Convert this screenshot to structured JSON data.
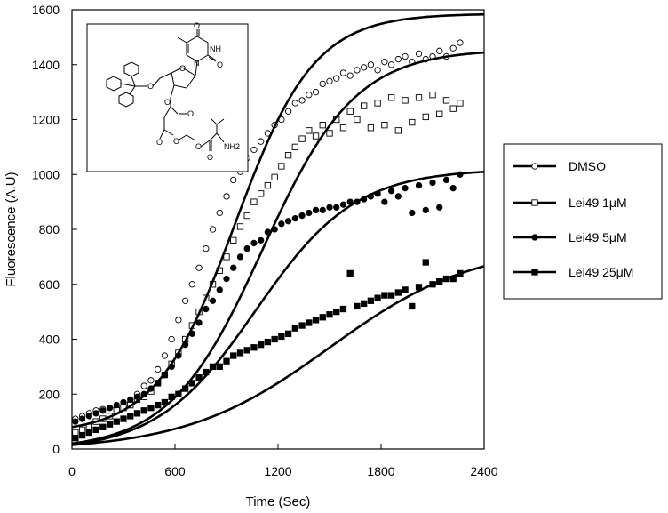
{
  "chart_data": {
    "type": "scatter",
    "xlabel": "Time (Sec)",
    "ylabel": "Fluorescence (A.U)",
    "xlim": [
      0,
      2400
    ],
    "ylim": [
      0,
      1600
    ],
    "xticks": [
      "0",
      "600",
      "1200",
      "1800",
      "2400"
    ],
    "yticks": [
      "0",
      "200",
      "400",
      "600",
      "800",
      "1000",
      "1200",
      "1400",
      "1600"
    ],
    "legend_position": "right",
    "inset": "chemical structure of Lei49 (trityl-protected thymidine nucleoside conjugated to a valine ester)",
    "inset_labels": [
      "O",
      "NH",
      "N",
      "NH2"
    ],
    "series": [
      {
        "name": "DMSO",
        "marker": "open-circle",
        "color": "#000000",
        "fit": {
          "A": 1530,
          "t50": 950,
          "s": 230,
          "y0": 80
        }
      },
      {
        "name": "Lei49 1μM",
        "marker": "open-square",
        "color": "#000000",
        "fit": {
          "A": 1460,
          "t50": 1110,
          "s": 270,
          "y0": 20
        }
      },
      {
        "name": "Lei49 5μM",
        "marker": "filled-circle",
        "color": "#000000",
        "fit": {
          "A": 1030,
          "t50": 1070,
          "s": 290,
          "y0": 15
        }
      },
      {
        "name": "Lei49 25μM",
        "marker": "filled-square",
        "color": "#000000",
        "fit": {
          "A": 750,
          "t50": 1500,
          "s": 420,
          "y0": 15
        }
      }
    ],
    "points": {
      "DMSO": [
        [
          20,
          110
        ],
        [
          60,
          120
        ],
        [
          100,
          130
        ],
        [
          140,
          140
        ],
        [
          180,
          145
        ],
        [
          220,
          150
        ],
        [
          260,
          150
        ],
        [
          300,
          160
        ],
        [
          340,
          170
        ],
        [
          380,
          200
        ],
        [
          420,
          230
        ],
        [
          460,
          250
        ],
        [
          500,
          290
        ],
        [
          540,
          340
        ],
        [
          580,
          400
        ],
        [
          620,
          470
        ],
        [
          660,
          540
        ],
        [
          700,
          600
        ],
        [
          740,
          660
        ],
        [
          780,
          730
        ],
        [
          820,
          800
        ],
        [
          860,
          860
        ],
        [
          900,
          920
        ],
        [
          940,
          980
        ],
        [
          980,
          1010
        ],
        [
          1020,
          1060
        ],
        [
          1060,
          1090
        ],
        [
          1100,
          1120
        ],
        [
          1140,
          1150
        ],
        [
          1180,
          1180
        ],
        [
          1220,
          1200
        ],
        [
          1260,
          1230
        ],
        [
          1300,
          1260
        ],
        [
          1340,
          1270
        ],
        [
          1380,
          1290
        ],
        [
          1420,
          1300
        ],
        [
          1460,
          1330
        ],
        [
          1500,
          1340
        ],
        [
          1540,
          1350
        ],
        [
          1580,
          1370
        ],
        [
          1620,
          1360
        ],
        [
          1660,
          1380
        ],
        [
          1700,
          1390
        ],
        [
          1740,
          1400
        ],
        [
          1780,
          1380
        ],
        [
          1820,
          1410
        ],
        [
          1860,
          1400
        ],
        [
          1900,
          1420
        ],
        [
          1940,
          1430
        ],
        [
          1980,
          1410
        ],
        [
          2020,
          1440
        ],
        [
          2060,
          1420
        ],
        [
          2100,
          1430
        ],
        [
          2140,
          1450
        ],
        [
          2180,
          1430
        ],
        [
          2220,
          1460
        ],
        [
          2260,
          1480
        ]
      ],
      "Lei49 1μM": [
        [
          20,
          60
        ],
        [
          60,
          70
        ],
        [
          100,
          80
        ],
        [
          140,
          100
        ],
        [
          180,
          110
        ],
        [
          220,
          120
        ],
        [
          260,
          140
        ],
        [
          300,
          150
        ],
        [
          340,
          160
        ],
        [
          380,
          180
        ],
        [
          420,
          190
        ],
        [
          460,
          210
        ],
        [
          500,
          240
        ],
        [
          540,
          270
        ],
        [
          580,
          310
        ],
        [
          620,
          350
        ],
        [
          660,
          400
        ],
        [
          700,
          450
        ],
        [
          740,
          500
        ],
        [
          780,
          550
        ],
        [
          820,
          600
        ],
        [
          860,
          650
        ],
        [
          900,
          700
        ],
        [
          940,
          760
        ],
        [
          980,
          810
        ],
        [
          1020,
          850
        ],
        [
          1060,
          900
        ],
        [
          1100,
          930
        ],
        [
          1140,
          960
        ],
        [
          1180,
          990
        ],
        [
          1220,
          1030
        ],
        [
          1260,
          1070
        ],
        [
          1300,
          1100
        ],
        [
          1340,
          1130
        ],
        [
          1380,
          1160
        ],
        [
          1420,
          1140
        ],
        [
          1460,
          1180
        ],
        [
          1500,
          1150
        ],
        [
          1540,
          1200
        ],
        [
          1580,
          1170
        ],
        [
          1620,
          1230
        ],
        [
          1660,
          1200
        ],
        [
          1700,
          1250
        ],
        [
          1740,
          1170
        ],
        [
          1780,
          1260
        ],
        [
          1820,
          1180
        ],
        [
          1860,
          1280
        ],
        [
          1900,
          1160
        ],
        [
          1940,
          1270
        ],
        [
          1980,
          1190
        ],
        [
          2020,
          1280
        ],
        [
          2060,
          1210
        ],
        [
          2100,
          1290
        ],
        [
          2140,
          1220
        ],
        [
          2180,
          1270
        ],
        [
          2220,
          1240
        ],
        [
          2260,
          1260
        ]
      ],
      "Lei49 5μM": [
        [
          20,
          100
        ],
        [
          60,
          110
        ],
        [
          100,
          120
        ],
        [
          140,
          130
        ],
        [
          180,
          140
        ],
        [
          220,
          150
        ],
        [
          260,
          160
        ],
        [
          300,
          170
        ],
        [
          340,
          180
        ],
        [
          380,
          190
        ],
        [
          420,
          200
        ],
        [
          460,
          220
        ],
        [
          500,
          240
        ],
        [
          540,
          270
        ],
        [
          580,
          300
        ],
        [
          620,
          340
        ],
        [
          660,
          380
        ],
        [
          700,
          420
        ],
        [
          740,
          460
        ],
        [
          780,
          510
        ],
        [
          820,
          540
        ],
        [
          860,
          580
        ],
        [
          900,
          620
        ],
        [
          940,
          660
        ],
        [
          980,
          700
        ],
        [
          1020,
          730
        ],
        [
          1060,
          750
        ],
        [
          1100,
          760
        ],
        [
          1140,
          790
        ],
        [
          1180,
          800
        ],
        [
          1220,
          820
        ],
        [
          1260,
          830
        ],
        [
          1300,
          840
        ],
        [
          1340,
          850
        ],
        [
          1380,
          860
        ],
        [
          1420,
          870
        ],
        [
          1460,
          870
        ],
        [
          1500,
          880
        ],
        [
          1540,
          880
        ],
        [
          1580,
          890
        ],
        [
          1620,
          900
        ],
        [
          1660,
          900
        ],
        [
          1700,
          910
        ],
        [
          1740,
          920
        ],
        [
          1780,
          930
        ],
        [
          1820,
          900
        ],
        [
          1860,
          940
        ],
        [
          1900,
          920
        ],
        [
          1940,
          950
        ],
        [
          1980,
          860
        ],
        [
          2020,
          960
        ],
        [
          2060,
          870
        ],
        [
          2100,
          970
        ],
        [
          2140,
          880
        ],
        [
          2180,
          980
        ],
        [
          2220,
          950
        ],
        [
          2260,
          1000
        ]
      ],
      "Lei49 25μM": [
        [
          20,
          40
        ],
        [
          60,
          50
        ],
        [
          100,
          60
        ],
        [
          140,
          70
        ],
        [
          180,
          80
        ],
        [
          220,
          90
        ],
        [
          260,
          100
        ],
        [
          300,
          110
        ],
        [
          340,
          120
        ],
        [
          380,
          130
        ],
        [
          420,
          140
        ],
        [
          460,
          150
        ],
        [
          500,
          160
        ],
        [
          540,
          170
        ],
        [
          580,
          190
        ],
        [
          620,
          200
        ],
        [
          660,
          220
        ],
        [
          700,
          240
        ],
        [
          740,
          260
        ],
        [
          780,
          280
        ],
        [
          820,
          300
        ],
        [
          860,
          300
        ],
        [
          900,
          320
        ],
        [
          940,
          340
        ],
        [
          980,
          350
        ],
        [
          1020,
          360
        ],
        [
          1060,
          370
        ],
        [
          1100,
          380
        ],
        [
          1140,
          390
        ],
        [
          1180,
          400
        ],
        [
          1220,
          410
        ],
        [
          1260,
          420
        ],
        [
          1300,
          440
        ],
        [
          1340,
          450
        ],
        [
          1380,
          460
        ],
        [
          1420,
          470
        ],
        [
          1460,
          480
        ],
        [
          1500,
          490
        ],
        [
          1540,
          500
        ],
        [
          1580,
          510
        ],
        [
          1620,
          640
        ],
        [
          1660,
          520
        ],
        [
          1700,
          530
        ],
        [
          1740,
          540
        ],
        [
          1780,
          550
        ],
        [
          1820,
          560
        ],
        [
          1860,
          560
        ],
        [
          1900,
          570
        ],
        [
          1940,
          580
        ],
        [
          1980,
          520
        ],
        [
          2020,
          590
        ],
        [
          2060,
          680
        ],
        [
          2100,
          600
        ],
        [
          2140,
          610
        ],
        [
          2180,
          620
        ],
        [
          2220,
          620
        ],
        [
          2260,
          640
        ]
      ]
    }
  }
}
